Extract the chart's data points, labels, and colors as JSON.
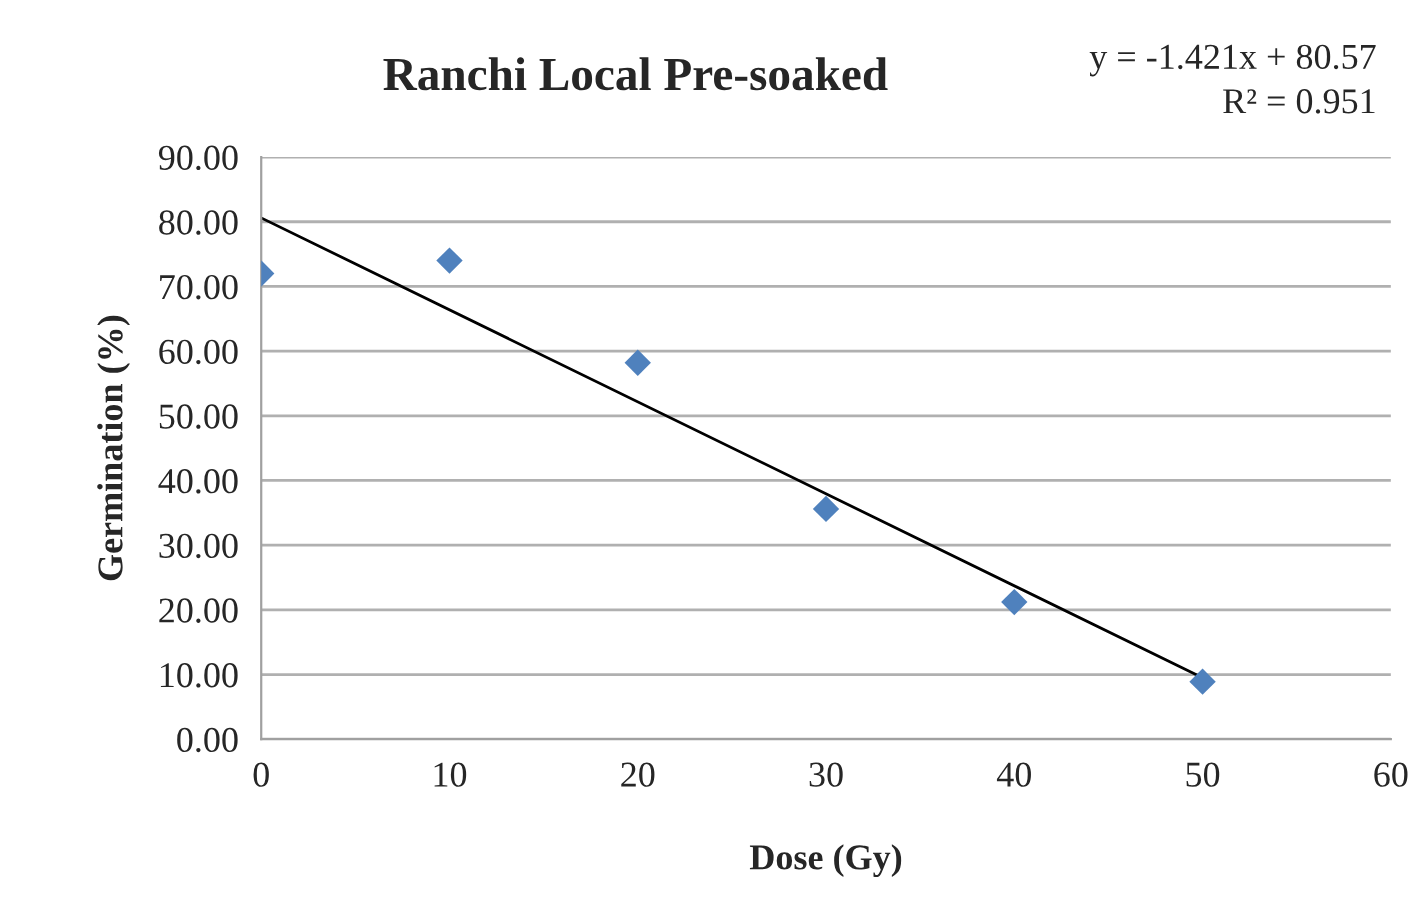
{
  "chart_data": {
    "type": "scatter",
    "title": "Ranchi Local Pre-soaked",
    "xlabel": "Dose (Gy)",
    "ylabel": "Germination (%)",
    "x": [
      0,
      10,
      20,
      30,
      40,
      50
    ],
    "series": [
      {
        "color": "#4f81bd",
        "values": [
          72.0,
          74.0,
          58.2,
          35.6,
          21.2,
          8.9
        ],
        "marker": "diamond"
      },
      {
        "type": "line",
        "color": "#000000",
        "x": [
          0,
          50
        ],
        "values": [
          80.6,
          9.5
        ],
        "marker": "none",
        "line_style": "solid"
      }
    ],
    "annotations": [
      "y = -1.421x + 80.57",
      "R² = 0.951"
    ],
    "xlim": [
      0,
      60
    ],
    "xticks": [
      0,
      10,
      20,
      30,
      40,
      50,
      60
    ],
    "ylim": [
      0,
      90
    ],
    "yticks": [
      {
        "value": 0,
        "label": "0.00"
      },
      {
        "value": 10,
        "label": "10.00"
      },
      {
        "value": 20,
        "label": "20.00"
      },
      {
        "value": 30,
        "label": "30.00"
      },
      {
        "value": 40,
        "label": "40.00"
      },
      {
        "value": 50,
        "label": "50.00"
      },
      {
        "value": 60,
        "label": "60.00"
      },
      {
        "value": 70,
        "label": "70.00"
      },
      {
        "value": 80,
        "label": "80.00"
      },
      {
        "value": 90,
        "label": "90.00"
      }
    ],
    "grid": "y",
    "legend": false
  }
}
